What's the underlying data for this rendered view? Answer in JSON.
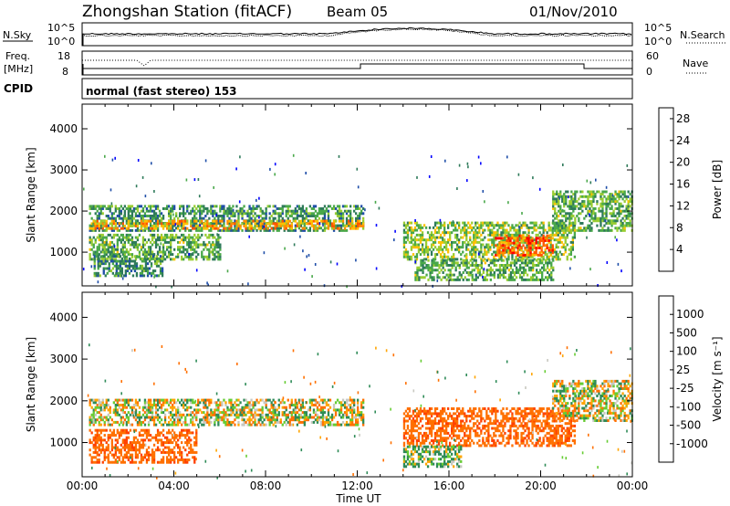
{
  "header": {
    "title": "Zhongshan Station (fitACF)",
    "beam": "Beam 05",
    "date": "01/Nov/2010"
  },
  "top_panels": {
    "nsky_label": "N.Sky",
    "nsearch_label": "N.Search",
    "nsky_ticks": [
      "10^5",
      "10^0"
    ],
    "nsky_right_ticks": [
      "10^5",
      "10^0"
    ],
    "freq_label_1": "Freq.",
    "freq_label_2": "[MHz]",
    "freq_ticks": [
      "18",
      "8"
    ],
    "nave_label": "Nave",
    "nave_ticks": [
      "60",
      "0"
    ],
    "cpid_label": "CPID",
    "cpid_text": "normal (fast stereo) 153"
  },
  "colors": {
    "power": [
      "#0000ff",
      "#1f4ea8",
      "#2e7a5a",
      "#49a84a",
      "#9acd32",
      "#ffc000",
      "#ff8c00",
      "#ff5500",
      "#ff0000"
    ],
    "velocity": [
      "#0033cc",
      "#1a5aa0",
      "#2e8b57",
      "#66cc33",
      "#c8c8c0",
      "#ffa500",
      "#ff7000",
      "#ff4000",
      "#ff0000"
    ]
  },
  "chart_data": [
    {
      "type": "heatmap",
      "ylabel": "Slant Range [km]",
      "xlabel": "Time UT",
      "x_ticks": [
        "00:00",
        "04:00",
        "08:00",
        "12:00",
        "16:00",
        "20:00",
        "00:00"
      ],
      "x_range_hours": [
        0,
        24
      ],
      "y_ticks": [
        1000,
        2000,
        3000,
        4000
      ],
      "ylim": [
        180,
        4600
      ],
      "colorbar_label": "Power [dB]",
      "colorbar_ticks": [
        4,
        8,
        12,
        16,
        20,
        24,
        28
      ],
      "colorbar_range": [
        0,
        30
      ],
      "bands": [
        {
          "t": [
            0.3,
            12.3
          ],
          "r": [
            1500,
            2100
          ],
          "v": 10
        },
        {
          "t": [
            0.3,
            12.3
          ],
          "r": [
            1550,
            1750
          ],
          "v": 20
        },
        {
          "t": [
            0.3,
            6.0
          ],
          "r": [
            800,
            1400
          ],
          "v": 12
        },
        {
          "t": [
            0.5,
            3.5
          ],
          "r": [
            400,
            900
          ],
          "v": 10
        },
        {
          "t": [
            14.0,
            21.5
          ],
          "r": [
            800,
            1700
          ],
          "v": 14
        },
        {
          "t": [
            18.0,
            20.5
          ],
          "r": [
            900,
            1400
          ],
          "v": 24
        },
        {
          "t": [
            20.5,
            24.0
          ],
          "r": [
            1500,
            2500
          ],
          "v": 12
        },
        {
          "t": [
            14.5,
            20.5
          ],
          "r": [
            300,
            800
          ],
          "v": 12
        }
      ]
    },
    {
      "type": "heatmap",
      "ylabel": "Slant Range [km]",
      "xlabel": "Time UT",
      "x_ticks": [
        "00:00",
        "04:00",
        "08:00",
        "12:00",
        "16:00",
        "20:00",
        "00:00"
      ],
      "x_range_hours": [
        0,
        24
      ],
      "y_ticks": [
        1000,
        2000,
        3000,
        4000
      ],
      "ylim": [
        180,
        4600
      ],
      "colorbar_label": "Velocity [m s⁻¹]",
      "colorbar_ticks": [
        1000,
        500,
        100,
        25,
        -25,
        -100,
        -500,
        -1000
      ],
      "bands": [
        {
          "t": [
            0.3,
            12.3
          ],
          "r": [
            1400,
            2000
          ],
          "v": 0
        },
        {
          "t": [
            0.3,
            5.0
          ],
          "r": [
            500,
            1300
          ],
          "v": -400
        },
        {
          "t": [
            14.0,
            21.5
          ],
          "r": [
            900,
            1800
          ],
          "v": -400
        },
        {
          "t": [
            20.5,
            24.0
          ],
          "r": [
            1500,
            2500
          ],
          "v": 0
        },
        {
          "t": [
            14.0,
            16.5
          ],
          "r": [
            400,
            900
          ],
          "v": 100
        }
      ]
    }
  ]
}
